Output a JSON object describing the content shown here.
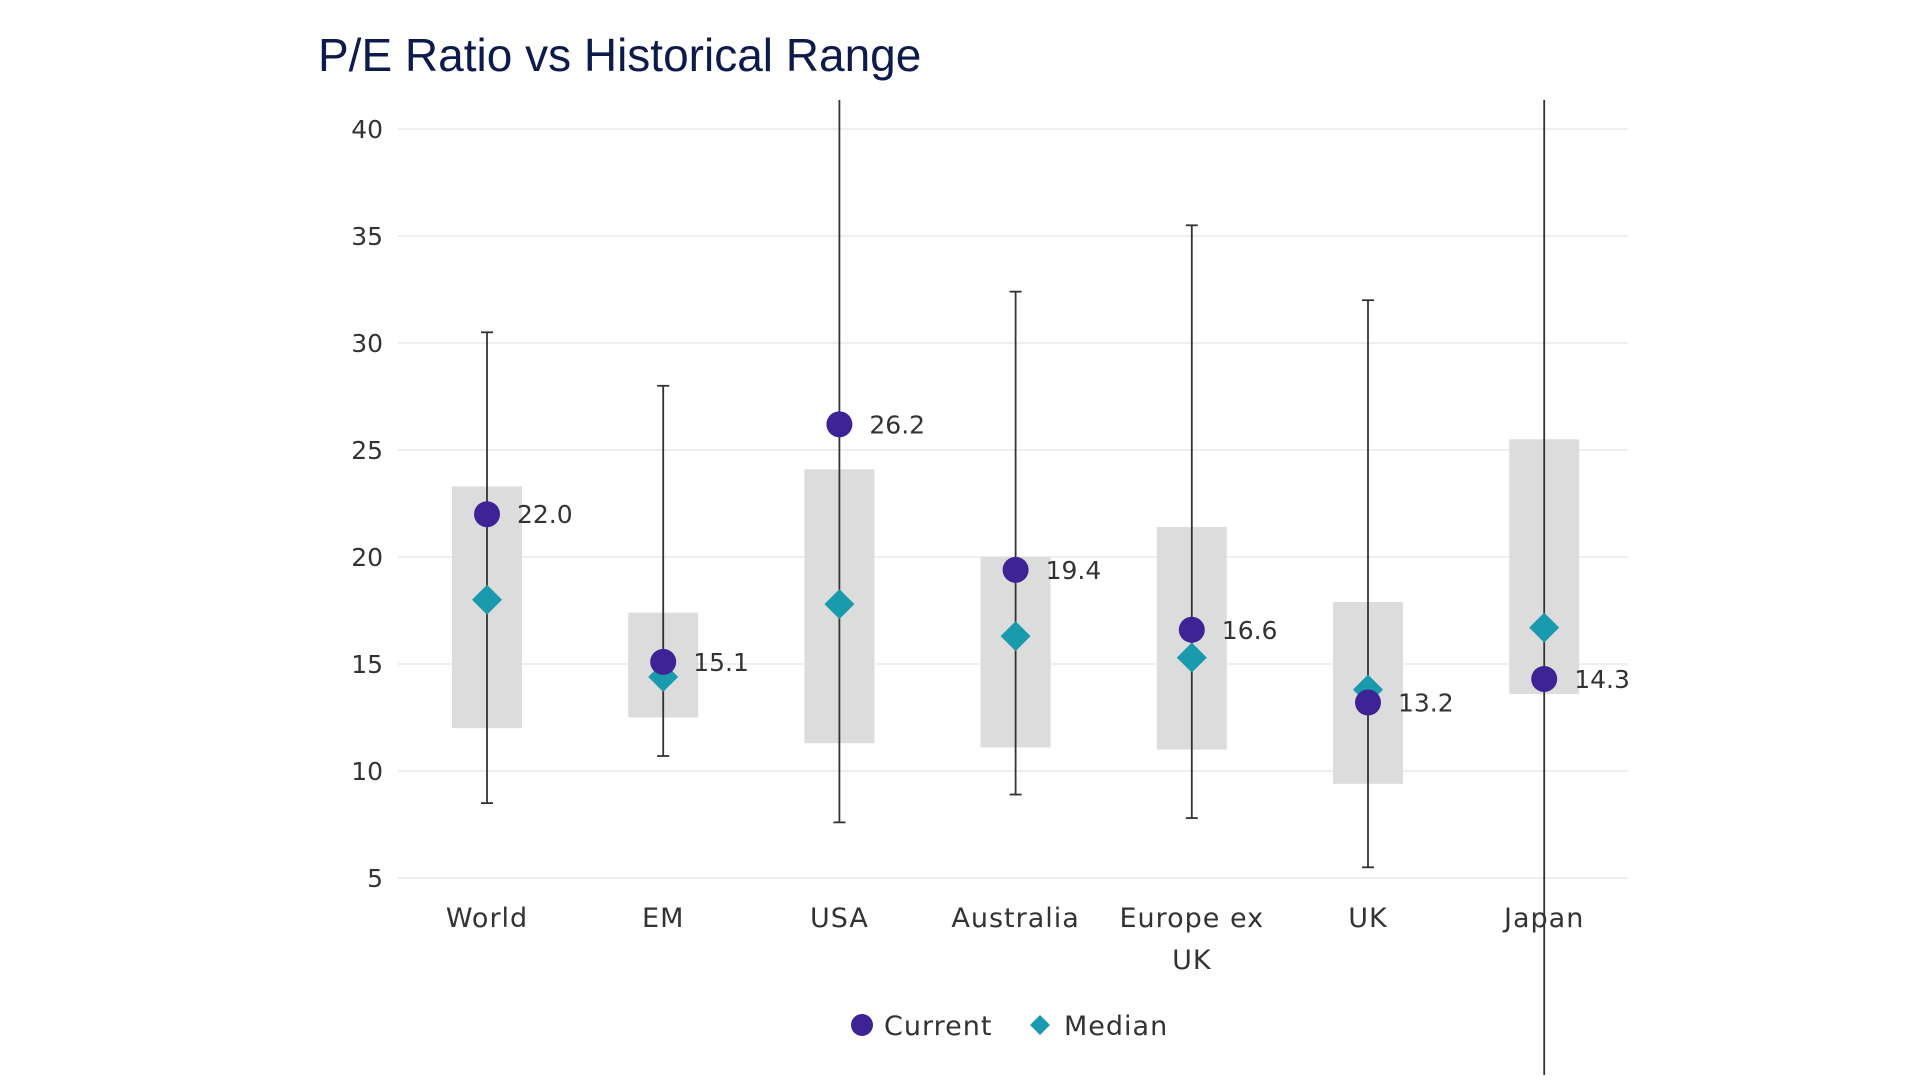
{
  "chart_data": {
    "type": "range-dot",
    "title": "P/E Ratio vs Historical Range",
    "xlabel": "",
    "ylabel": "",
    "ylim": [
      5,
      40
    ],
    "yticks": [
      5,
      10,
      15,
      20,
      25,
      30,
      35,
      40
    ],
    "grid": true,
    "legend_position": "bottom-center",
    "categories": [
      {
        "name": "World",
        "label_lines": [
          "World"
        ],
        "min": 8.5,
        "max": 30.5,
        "box_low": 12.0,
        "box_high": 23.3,
        "current": 22.0,
        "current_label": "22.0",
        "median": 18.0
      },
      {
        "name": "EM",
        "label_lines": [
          "EM"
        ],
        "min": 10.7,
        "max": 28.0,
        "box_low": 12.5,
        "box_high": 17.4,
        "current": 15.1,
        "current_label": "15.1",
        "median": 14.4
      },
      {
        "name": "USA",
        "label_lines": [
          "USA"
        ],
        "min": 7.6,
        "max": 41.5,
        "box_low": 11.3,
        "box_high": 24.1,
        "current": 26.2,
        "current_label": "26.2",
        "median": 17.8
      },
      {
        "name": "Australia",
        "label_lines": [
          "Australia"
        ],
        "min": 8.9,
        "max": 32.4,
        "box_low": 11.1,
        "box_high": 20.0,
        "current": 19.4,
        "current_label": "19.4",
        "median": 16.3
      },
      {
        "name": "Europe ex UK",
        "label_lines": [
          "Europe ex",
          "UK"
        ],
        "min": 7.8,
        "max": 35.5,
        "box_low": 11.0,
        "box_high": 21.4,
        "current": 16.6,
        "current_label": "16.6",
        "median": 15.3
      },
      {
        "name": "UK",
        "label_lines": [
          "UK"
        ],
        "min": 5.5,
        "max": 32.0,
        "box_low": 9.4,
        "box_high": 17.9,
        "current": 13.2,
        "current_label": "13.2",
        "median": 13.8
      },
      {
        "name": "Japan",
        "label_lines": [
          "Japan"
        ],
        "min": -4.3,
        "max": 41.5,
        "box_low": 13.6,
        "box_high": 25.5,
        "current": 14.3,
        "current_label": "14.3",
        "median": 16.7
      }
    ],
    "series": [
      {
        "name": "Current",
        "marker": "circle",
        "color": "#3d2395"
      },
      {
        "name": "Median",
        "marker": "diamond",
        "color": "#1a9aad"
      }
    ],
    "legend": [
      "Current",
      "Median"
    ],
    "colors": {
      "range_line": "#333333",
      "box": "#dcdcdc",
      "grid": "#e3e3e3",
      "current": "#3d2395",
      "median": "#1a9aad"
    }
  }
}
